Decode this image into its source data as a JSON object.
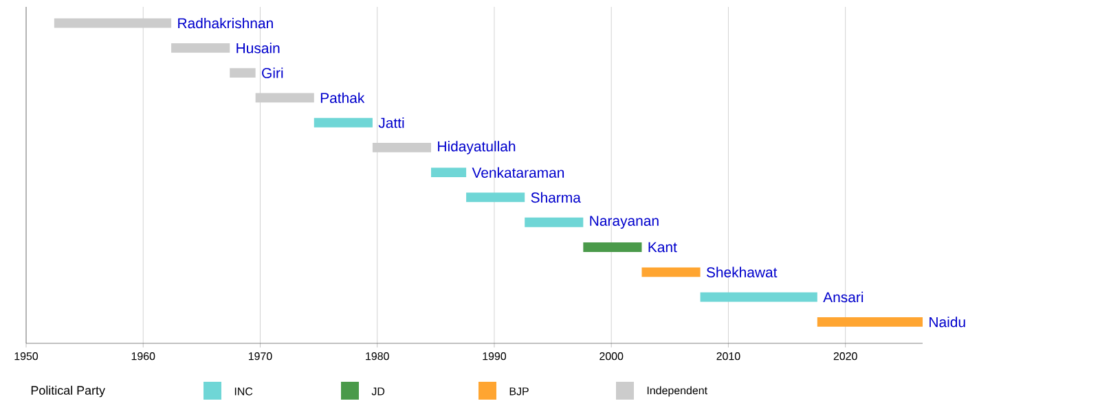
{
  "chart_data": {
    "type": "bar",
    "orientation": "horizontal",
    "legend_title": "Political Party",
    "legend": "bottom",
    "grid": "x",
    "tick_labels": "x",
    "categories": [
      "Radhakrishnan",
      "Husain",
      "Giri",
      "Pathak",
      "Jatti",
      "Hidayatullah",
      "Venkataraman",
      "Sharma",
      "Narayanan",
      "Kant",
      "Shekhawat",
      "Ansari",
      "Naidu"
    ],
    "series": [
      {
        "name": "INC",
        "color": "#6fd6d6",
        "base": [
          null,
          null,
          null,
          null,
          1974.6,
          null,
          1984.6,
          1987.6,
          1992.6,
          null,
          null,
          2007.6,
          null
        ],
        "values": [
          null,
          null,
          null,
          null,
          5,
          null,
          3,
          5,
          5,
          null,
          null,
          10,
          null
        ]
      },
      {
        "name": "JD",
        "color": "#4a9a4a",
        "base": [
          null,
          null,
          null,
          null,
          null,
          null,
          null,
          null,
          null,
          1997.6,
          null,
          null,
          null
        ],
        "values": [
          null,
          null,
          null,
          null,
          null,
          null,
          null,
          null,
          null,
          5,
          null,
          null,
          null
        ]
      },
      {
        "name": "BJP",
        "color": "#ffa531",
        "base": [
          null,
          null,
          null,
          null,
          null,
          null,
          null,
          null,
          null,
          null,
          2002.6,
          null,
          2017.6
        ],
        "values": [
          null,
          null,
          null,
          null,
          null,
          null,
          null,
          null,
          null,
          null,
          5,
          null,
          9
        ]
      },
      {
        "name": "Independent",
        "color": "#cccccc",
        "base": [
          1952.4,
          1962.4,
          1967.4,
          1969.6,
          null,
          1979.6,
          null,
          null,
          null,
          null,
          null,
          null,
          null
        ],
        "values": [
          10,
          5,
          2.2,
          5,
          null,
          5,
          null,
          null,
          null,
          null,
          null,
          null,
          null
        ]
      }
    ],
    "xlim": [
      1950,
      2026.6
    ],
    "xticks": [
      1950,
      1960,
      1970,
      1980,
      1990,
      2000,
      2010,
      2020
    ]
  }
}
